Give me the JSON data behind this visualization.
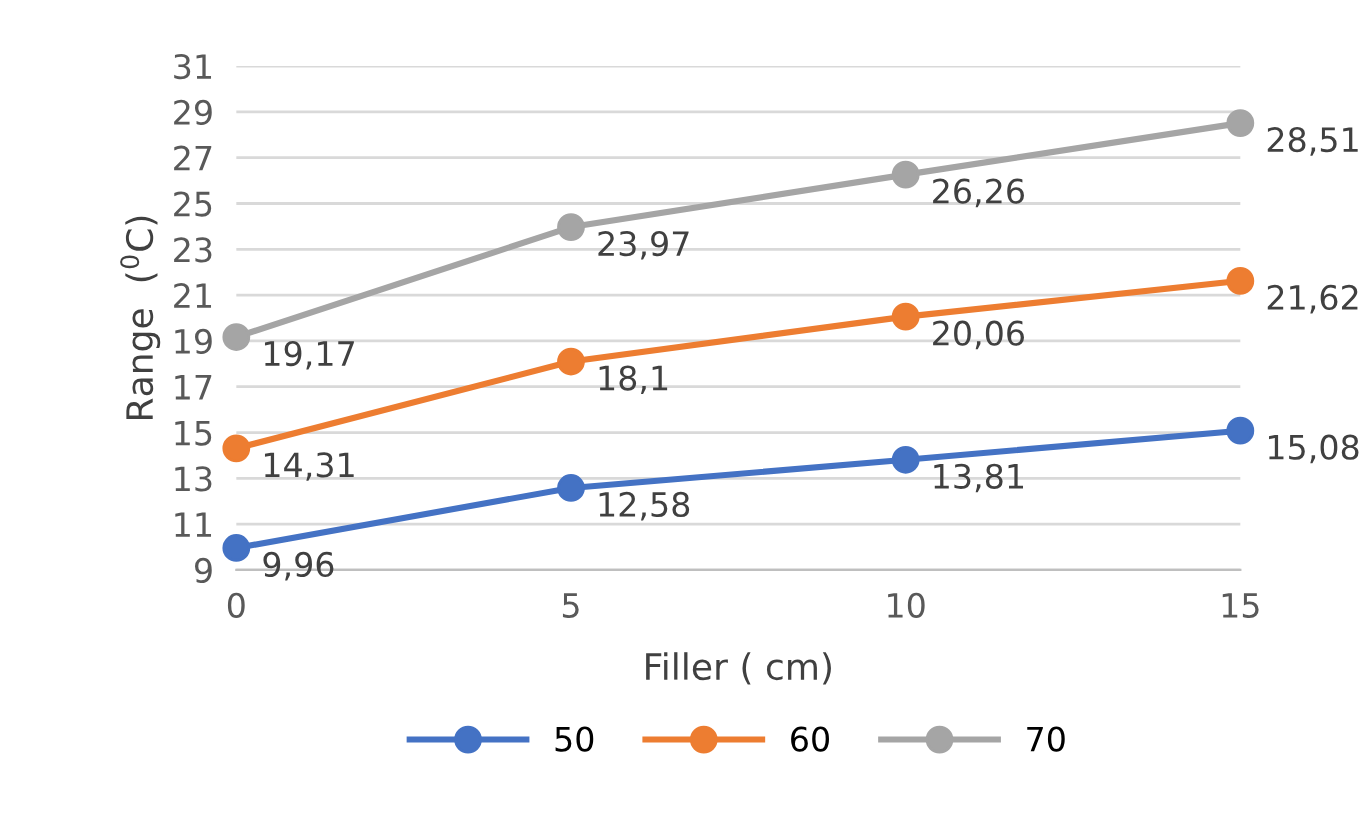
{
  "chart_data": {
    "type": "line",
    "xlabel": "Filler ( cm)",
    "ylabel": "Range  ($^{0}$C)",
    "categories": [
      "0",
      "5",
      "10",
      "15"
    ],
    "series": [
      {
        "name": "50",
        "color": "#4472c4",
        "values": [
          9.96,
          12.58,
          13.81,
          15.08
        ],
        "value_labels": [
          "9,96",
          "12,58",
          "13,81",
          "15,08"
        ]
      },
      {
        "name": "60",
        "color": "#ed7d31",
        "values": [
          14.31,
          18.1,
          20.06,
          21.62
        ],
        "value_labels": [
          "14,31",
          "18,1",
          "20,06",
          "21,62"
        ]
      },
      {
        "name": "70",
        "color": "#a5a5a5",
        "values": [
          19.17,
          23.97,
          26.26,
          28.51
        ],
        "value_labels": [
          "19,17",
          "23,97",
          "26,26",
          "28,51"
        ]
      }
    ],
    "ylim": [
      9,
      31
    ],
    "yticks": [
      9,
      11,
      13,
      15,
      17,
      19,
      21,
      23,
      25,
      27,
      29,
      31
    ],
    "grid": "y",
    "legend": "bottom",
    "marker": "circle",
    "line_style": "solid"
  }
}
